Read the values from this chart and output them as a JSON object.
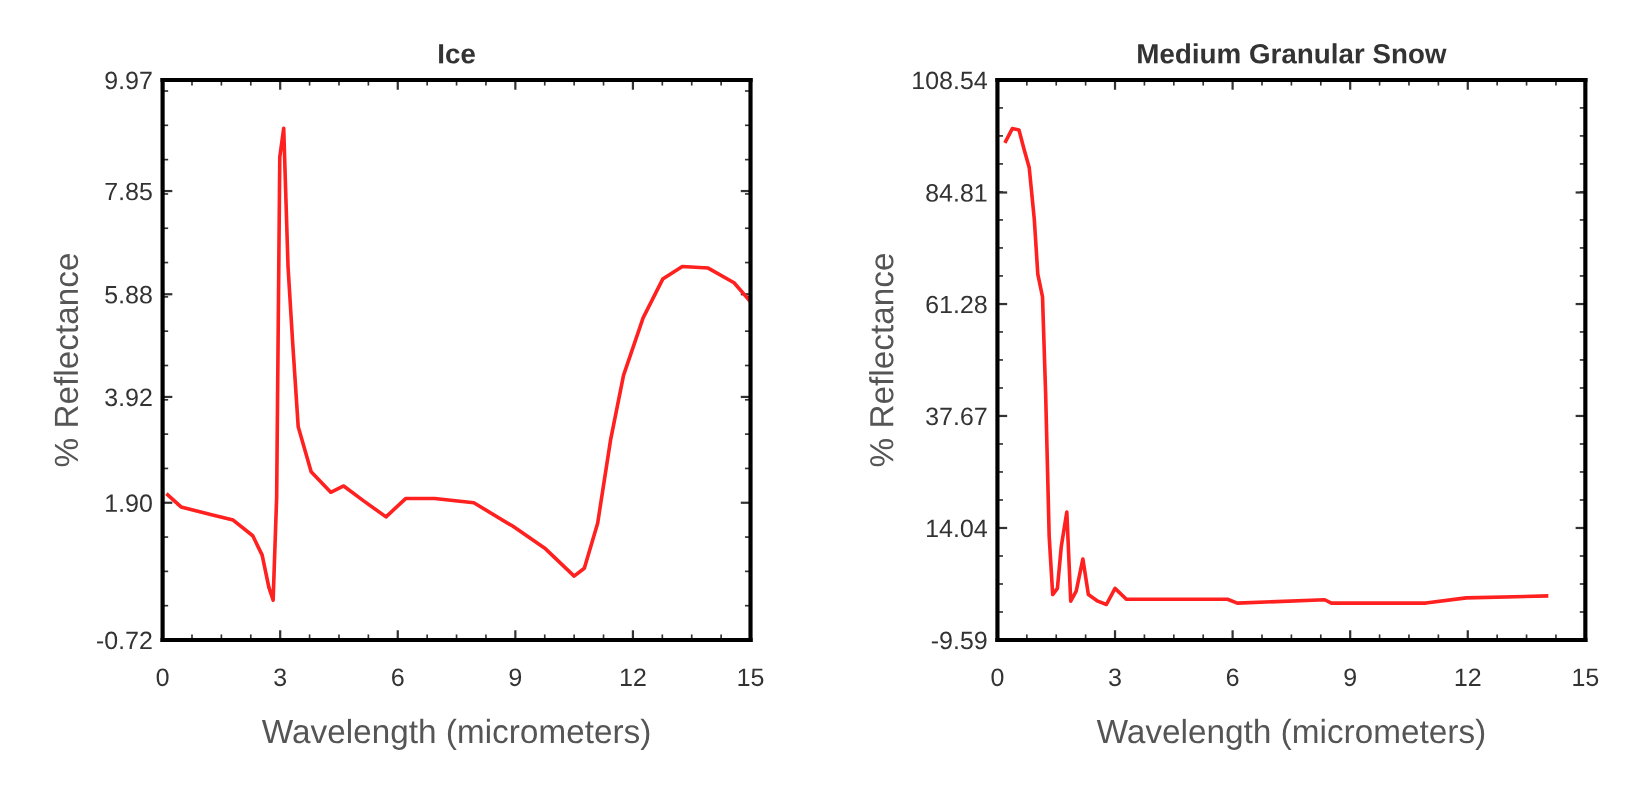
{
  "chart_data": [
    {
      "type": "line",
      "title": "Ice",
      "xlabel": "Wavelength (micrometers)",
      "ylabel": "% Reflectance",
      "xlim": [
        0,
        15
      ],
      "xticks": [
        0,
        3,
        6,
        9,
        12,
        15
      ],
      "ylim": [
        -0.72,
        9.97
      ],
      "yticks": [
        -0.72,
        {
          "value": 1.9,
          "label": "1.90"
        },
        3.92,
        5.88,
        7.85,
        9.97
      ],
      "grid": false,
      "legend": false,
      "marker": "none",
      "line_style": "solid",
      "series": [
        {
          "color": "#ff2020",
          "x": [
            0.13,
            0.47,
            1.3,
            1.8,
            2.3,
            2.54,
            2.71,
            2.82,
            2.91,
            2.99,
            3.09,
            3.2,
            3.32,
            3.46,
            3.79,
            4.29,
            4.62,
            5.12,
            5.7,
            6.2,
            6.94,
            7.94,
            8.94,
            9.77,
            10.5,
            10.76,
            11.1,
            11.43,
            11.76,
            12.26,
            12.76,
            13.26,
            13.92,
            14.58,
            15
          ],
          "values": [
            2.05,
            1.82,
            1.66,
            1.57,
            1.27,
            0.9,
            0.29,
            0.04,
            2.0,
            8.5,
            9.05,
            6.41,
            4.94,
            3.35,
            2.49,
            2.1,
            2.22,
            1.94,
            1.63,
            1.98,
            1.98,
            1.9,
            1.45,
            1.02,
            0.5,
            0.65,
            1.51,
            3.1,
            4.33,
            5.43,
            6.17,
            6.41,
            6.38,
            6.1,
            5.74
          ]
        }
      ]
    },
    {
      "type": "line",
      "title": "Medium Granular Snow",
      "xlabel": "Wavelength (micrometers)",
      "ylabel": "% Reflectance",
      "xlim": [
        0,
        15
      ],
      "xticks": [
        0,
        3,
        6,
        9,
        12,
        15
      ],
      "ylim": [
        -9.59,
        108.54
      ],
      "yticks": [
        -9.59,
        14.04,
        37.67,
        61.28,
        84.81,
        108.54
      ],
      "grid": false,
      "legend": false,
      "marker": "none",
      "line_style": "solid",
      "series": [
        {
          "color": "#ff2020",
          "x": [
            0.21,
            0.38,
            0.55,
            0.67,
            0.81,
            0.94,
            1.03,
            1.15,
            1.23,
            1.32,
            1.41,
            1.53,
            1.63,
            1.77,
            1.87,
            2.01,
            2.18,
            2.32,
            2.56,
            2.78,
            3.0,
            3.29,
            5.87,
            6.12,
            8.35,
            8.52,
            10.93,
            11.96,
            14.01
          ],
          "values": [
            95.6,
            98.3,
            98.0,
            94.2,
            90.1,
            79.2,
            67.6,
            62.8,
            42.3,
            12.3,
            0.0,
            1.3,
            10.2,
            17.4,
            -1.4,
            0.7,
            7.5,
            0.0,
            -1.4,
            -2.1,
            1.3,
            -1.0,
            -1.0,
            -1.8,
            -1.1,
            -1.8,
            -1.8,
            -0.7,
            -0.3
          ]
        }
      ]
    }
  ]
}
